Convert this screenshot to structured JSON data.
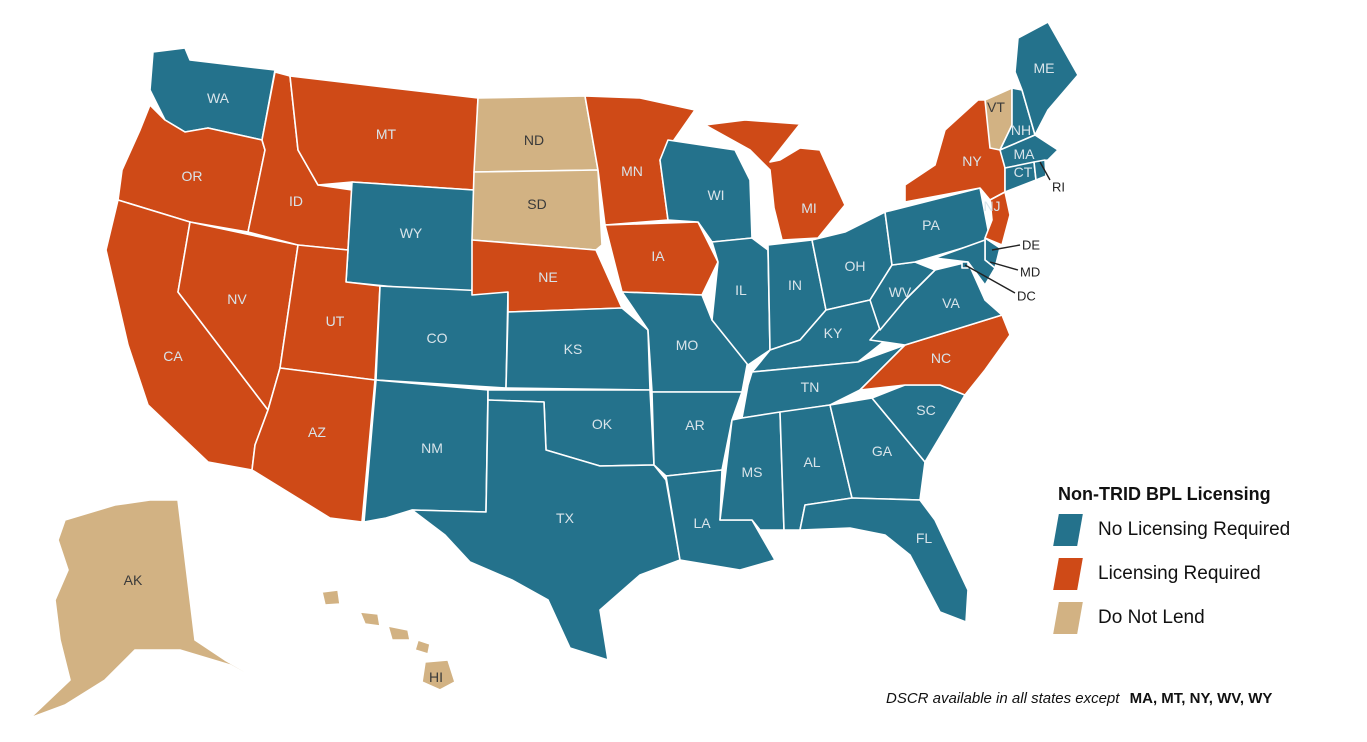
{
  "colors": {
    "no_licensing": "#24728c",
    "licensing": "#cf4a17",
    "do_not_lend": "#d2b283"
  },
  "states": [
    {
      "abbr": "WA",
      "category": "no_licensing"
    },
    {
      "abbr": "OR",
      "category": "licensing"
    },
    {
      "abbr": "CA",
      "category": "licensing"
    },
    {
      "abbr": "ID",
      "category": "licensing"
    },
    {
      "abbr": "NV",
      "category": "licensing"
    },
    {
      "abbr": "MT",
      "category": "licensing"
    },
    {
      "abbr": "WY",
      "category": "no_licensing"
    },
    {
      "abbr": "UT",
      "category": "licensing"
    },
    {
      "abbr": "AZ",
      "category": "licensing"
    },
    {
      "abbr": "CO",
      "category": "no_licensing"
    },
    {
      "abbr": "NM",
      "category": "no_licensing"
    },
    {
      "abbr": "ND",
      "category": "do_not_lend"
    },
    {
      "abbr": "SD",
      "category": "do_not_lend"
    },
    {
      "abbr": "NE",
      "category": "licensing"
    },
    {
      "abbr": "KS",
      "category": "no_licensing"
    },
    {
      "abbr": "OK",
      "category": "no_licensing"
    },
    {
      "abbr": "TX",
      "category": "no_licensing"
    },
    {
      "abbr": "MN",
      "category": "licensing"
    },
    {
      "abbr": "IA",
      "category": "licensing"
    },
    {
      "abbr": "MO",
      "category": "no_licensing"
    },
    {
      "abbr": "AR",
      "category": "no_licensing"
    },
    {
      "abbr": "LA",
      "category": "no_licensing"
    },
    {
      "abbr": "WI",
      "category": "no_licensing"
    },
    {
      "abbr": "IL",
      "category": "no_licensing"
    },
    {
      "abbr": "MI",
      "category": "licensing"
    },
    {
      "abbr": "IN",
      "category": "no_licensing"
    },
    {
      "abbr": "OH",
      "category": "no_licensing"
    },
    {
      "abbr": "KY",
      "category": "no_licensing"
    },
    {
      "abbr": "TN",
      "category": "no_licensing"
    },
    {
      "abbr": "MS",
      "category": "no_licensing"
    },
    {
      "abbr": "AL",
      "category": "no_licensing"
    },
    {
      "abbr": "GA",
      "category": "no_licensing"
    },
    {
      "abbr": "FL",
      "category": "no_licensing"
    },
    {
      "abbr": "SC",
      "category": "no_licensing"
    },
    {
      "abbr": "NC",
      "category": "licensing"
    },
    {
      "abbr": "VA",
      "category": "no_licensing"
    },
    {
      "abbr": "WV",
      "category": "no_licensing"
    },
    {
      "abbr": "PA",
      "category": "no_licensing"
    },
    {
      "abbr": "NY",
      "category": "licensing"
    },
    {
      "abbr": "VT",
      "category": "do_not_lend"
    },
    {
      "abbr": "NH",
      "category": "no_licensing"
    },
    {
      "abbr": "ME",
      "category": "no_licensing"
    },
    {
      "abbr": "MA",
      "category": "no_licensing"
    },
    {
      "abbr": "CT",
      "category": "no_licensing"
    },
    {
      "abbr": "RI",
      "category": "no_licensing"
    },
    {
      "abbr": "NJ",
      "category": "licensing"
    },
    {
      "abbr": "DE",
      "category": "no_licensing"
    },
    {
      "abbr": "MD",
      "category": "no_licensing"
    },
    {
      "abbr": "DC",
      "category": "no_licensing"
    },
    {
      "abbr": "AK",
      "category": "do_not_lend"
    },
    {
      "abbr": "HI",
      "category": "do_not_lend"
    }
  ],
  "legend": {
    "title": "Non-TRID BPL Licensing",
    "items": [
      {
        "label": "No Licensing Required",
        "category": "no_licensing"
      },
      {
        "label": "Licensing Required",
        "category": "licensing"
      },
      {
        "label": "Do Not Lend",
        "category": "do_not_lend"
      }
    ]
  },
  "footnote": {
    "text": "DSCR available in all states except",
    "states": "MA, MT, NY, WV, WY"
  }
}
